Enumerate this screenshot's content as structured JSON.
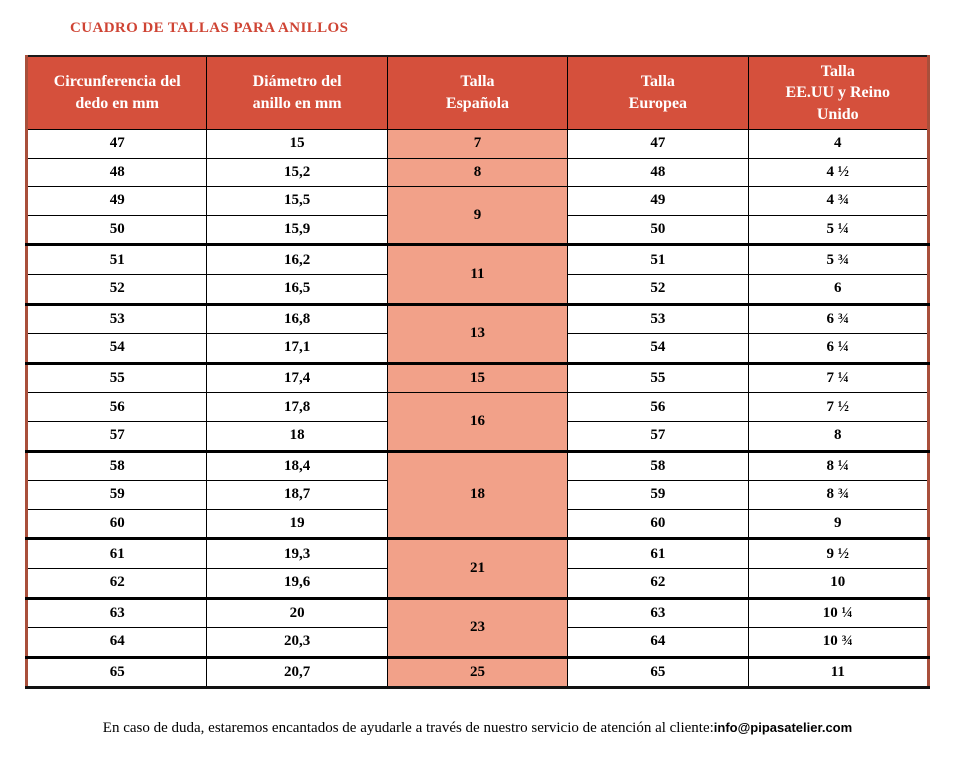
{
  "title": "CUADRO DE TALLAS PARA ANILLOS",
  "colors": {
    "header_bg": "#d5503c",
    "spanish_column_bg": "#f2a189",
    "title_red": "#cf4434",
    "outer_side_border": "#a94f3b",
    "grid_border": "#000000"
  },
  "table": {
    "columns": [
      "Circunferencia del\ndedo en mm",
      "Diámetro del\nanillo en mm",
      "Talla\nEspañola",
      "Talla\nEuropea",
      "Talla\nEE.UU y Reino\nUnido"
    ],
    "rows": [
      {
        "circumference": "47",
        "diameter": "15",
        "spanish": "7",
        "spanish_span": 1,
        "spanish_thick": false,
        "european": "47",
        "us_uk": "4",
        "thick": false
      },
      {
        "circumference": "48",
        "diameter": "15,2",
        "spanish": "8",
        "spanish_span": 1,
        "spanish_thick": false,
        "european": "48",
        "us_uk": "4 ½",
        "thick": false
      },
      {
        "circumference": "49",
        "diameter": "15,5",
        "spanish": "9",
        "spanish_span": 2,
        "spanish_thick": true,
        "european": "49",
        "us_uk": "4 ¾",
        "thick": false
      },
      {
        "circumference": "50",
        "diameter": "15,9",
        "spanish": null,
        "spanish_span": 0,
        "spanish_thick": false,
        "european": "50",
        "us_uk": "5 ¼",
        "thick": true
      },
      {
        "circumference": "51",
        "diameter": "16,2",
        "spanish": "11",
        "spanish_span": 2,
        "spanish_thick": true,
        "european": "51",
        "us_uk": "5 ¾",
        "thick": false
      },
      {
        "circumference": "52",
        "diameter": "16,5",
        "spanish": null,
        "spanish_span": 0,
        "spanish_thick": false,
        "european": "52",
        "us_uk": "6",
        "thick": true
      },
      {
        "circumference": "53",
        "diameter": "16,8",
        "spanish": "13",
        "spanish_span": 2,
        "spanish_thick": true,
        "european": "53",
        "us_uk": "6 ¾",
        "thick": false
      },
      {
        "circumference": "54",
        "diameter": "17,1",
        "spanish": null,
        "spanish_span": 0,
        "spanish_thick": false,
        "european": "54",
        "us_uk": "6 ¼",
        "thick": true
      },
      {
        "circumference": "55",
        "diameter": "17,4",
        "spanish": "15",
        "spanish_span": 1,
        "spanish_thick": false,
        "european": "55",
        "us_uk": "7 ¼",
        "thick": false
      },
      {
        "circumference": "56",
        "diameter": "17,8",
        "spanish": "16",
        "spanish_span": 2,
        "spanish_thick": true,
        "european": "56",
        "us_uk": "7 ½",
        "thick": false
      },
      {
        "circumference": "57",
        "diameter": "18",
        "spanish": null,
        "spanish_span": 0,
        "spanish_thick": false,
        "european": "57",
        "us_uk": "8",
        "thick": true
      },
      {
        "circumference": "58",
        "diameter": "18,4",
        "spanish": "18",
        "spanish_span": 3,
        "spanish_thick": true,
        "european": "58",
        "us_uk": "8 ¼",
        "thick": false
      },
      {
        "circumference": "59",
        "diameter": "18,7",
        "spanish": null,
        "spanish_span": 0,
        "spanish_thick": false,
        "european": "59",
        "us_uk": "8 ¾",
        "thick": false
      },
      {
        "circumference": "60",
        "diameter": "19",
        "spanish": null,
        "spanish_span": 0,
        "spanish_thick": false,
        "european": "60",
        "us_uk": "9",
        "thick": true
      },
      {
        "circumference": "61",
        "diameter": "19,3",
        "spanish": "21",
        "spanish_span": 2,
        "spanish_thick": true,
        "european": "61",
        "us_uk": "9 ½",
        "thick": false
      },
      {
        "circumference": "62",
        "diameter": "19,6",
        "spanish": null,
        "spanish_span": 0,
        "spanish_thick": false,
        "european": "62",
        "us_uk": "10",
        "thick": true
      },
      {
        "circumference": "63",
        "diameter": "20",
        "spanish": "23",
        "spanish_span": 2,
        "spanish_thick": true,
        "european": "63",
        "us_uk": "10 ¼",
        "thick": false
      },
      {
        "circumference": "64",
        "diameter": "20,3",
        "spanish": null,
        "spanish_span": 0,
        "spanish_thick": false,
        "european": "64",
        "us_uk": "10 ¾",
        "thick": true
      },
      {
        "circumference": "65",
        "diameter": "20,7",
        "spanish": "25",
        "spanish_span": 1,
        "spanish_thick": false,
        "european": "65",
        "us_uk": "11",
        "thick": false
      }
    ]
  },
  "footer": {
    "text": "En caso de duda, estaremos encantados de ayudarle a través de nuestro servicio de atención al cliente:",
    "email": "info@pipasatelier.com"
  }
}
